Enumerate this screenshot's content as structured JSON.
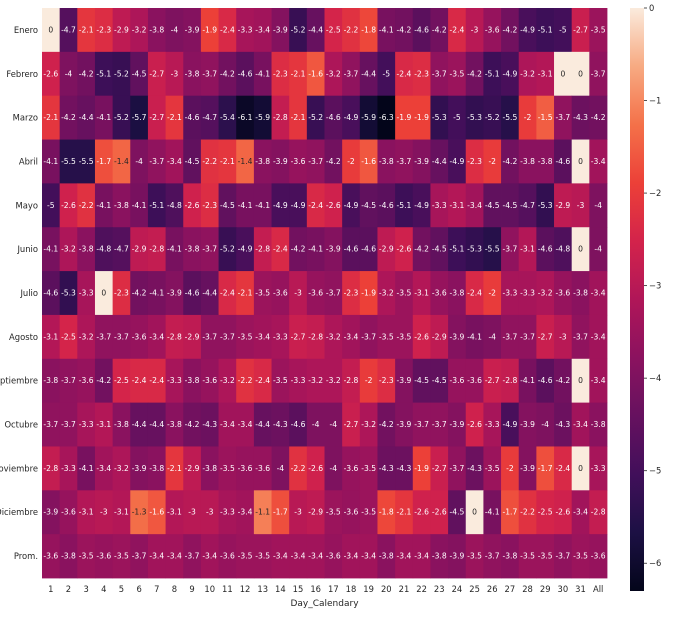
{
  "chart_data": {
    "type": "heatmap",
    "title": "",
    "xlabel": "Day_Calendary",
    "ylabel": "",
    "x_categories": [
      "1",
      "2",
      "3",
      "4",
      "5",
      "6",
      "7",
      "8",
      "9",
      "10",
      "11",
      "12",
      "13",
      "14",
      "15",
      "16",
      "17",
      "18",
      "19",
      "20",
      "21",
      "22",
      "23",
      "24",
      "25",
      "26",
      "27",
      "28",
      "29",
      "30",
      "31",
      "All"
    ],
    "y_categories": [
      "Enero",
      "Febrero",
      "Marzo",
      "Abril",
      "Mayo",
      "Junio",
      "Julio",
      "Agosto",
      "Septiembre",
      "Octubre",
      "Noviembre",
      "Diciembre",
      "Prom."
    ],
    "values": [
      [
        0,
        -4.7,
        -2.1,
        -2.3,
        -2.9,
        -3.2,
        -3.8,
        -4,
        -3.9,
        -1.9,
        -2.4,
        -3.3,
        -3.4,
        -3.9,
        -5.2,
        -4.4,
        -2.5,
        -2.2,
        -1.8,
        -4.1,
        -4.2,
        -4.6,
        -4.2,
        -2.4,
        -3,
        -3.6,
        -4.2,
        -4.9,
        -5.1,
        -5,
        -2.7,
        -3.5
      ],
      [
        -2.6,
        -4,
        -4.2,
        -5.1,
        -5.2,
        -4.5,
        -2.7,
        -3,
        -3.8,
        -3.7,
        -4.2,
        -4.6,
        -4.1,
        -2.3,
        -2.1,
        -1.6,
        -3.2,
        -3.7,
        -4.4,
        -5,
        -2.4,
        -2.3,
        -3.7,
        -3.5,
        -4.2,
        -5.1,
        -4.9,
        -3.2,
        -3.1,
        0,
        0,
        -3.7
      ],
      [
        -2.1,
        -4.2,
        -4.4,
        -4.1,
        -5.2,
        -5.7,
        -2.7,
        -2.1,
        -4.6,
        -4.7,
        -5.4,
        -6.1,
        -5.9,
        -2.8,
        -2.1,
        -5.2,
        -4.6,
        -4.9,
        -5.9,
        -6.3,
        -1.9,
        -1.9,
        -5.3,
        -5,
        -5.3,
        -5.2,
        -5.5,
        -2,
        -1.5,
        -3.7,
        -4.3,
        -4.2
      ],
      [
        -4.1,
        -5.5,
        -5.5,
        -1.7,
        -1.4,
        -4,
        -3.7,
        -3.4,
        -4.5,
        -2.2,
        -2.1,
        -1.4,
        -3.8,
        -3.9,
        -3.6,
        -3.7,
        -4.2,
        -2,
        -1.6,
        -3.8,
        -3.7,
        -3.9,
        -4.4,
        -4.9,
        -2.3,
        -2,
        -4.2,
        -3.8,
        -3.8,
        -4.6,
        0,
        -3.4
      ],
      [
        -5,
        -2.6,
        -2.2,
        -4.1,
        -3.8,
        -4.1,
        -5.1,
        -4.8,
        -2.6,
        -2.3,
        -4.5,
        -4.1,
        -4.1,
        -4.9,
        -4.9,
        -2.4,
        -2.6,
        -4.9,
        -4.5,
        -4.6,
        -5.1,
        -4.9,
        -3.3,
        -3.1,
        -3.4,
        -4.5,
        -4.5,
        -4.7,
        -5.3,
        -2.9,
        -3,
        -4
      ],
      [
        -4.1,
        -3.2,
        -3.8,
        -4.8,
        -4.7,
        -2.9,
        -2.8,
        -4.1,
        -3.8,
        -3.7,
        -5.2,
        -4.9,
        -2.8,
        -2.4,
        -4.2,
        -4.1,
        -3.9,
        -4.6,
        -4.6,
        -2.9,
        -2.6,
        -4.2,
        -4.5,
        -5.1,
        -5.3,
        -5.5,
        -3.7,
        -3.1,
        -4.6,
        -4.8,
        0,
        -4
      ],
      [
        -4.6,
        -5.3,
        -3.3,
        0,
        -2.3,
        -4.2,
        -4.1,
        -3.9,
        -4.6,
        -4.4,
        -2.4,
        -2.1,
        -3.5,
        -3.6,
        -3,
        -3.6,
        -3.7,
        -2.3,
        -1.9,
        -3.2,
        -3.5,
        -3.1,
        -3.6,
        -3.8,
        -2.4,
        -2,
        -3.3,
        -3.3,
        -3.2,
        -3.6,
        -3.8,
        -3.4
      ],
      [
        -3.1,
        -2.5,
        -3.2,
        -3.7,
        -3.7,
        -3.6,
        -3.4,
        -2.8,
        -2.9,
        -3.7,
        -3.7,
        -3.5,
        -3.4,
        -3.3,
        -2.7,
        -2.8,
        -3.2,
        -3.4,
        -3.7,
        -3.5,
        -3.5,
        -2.6,
        -2.9,
        -3.9,
        -4.1,
        -4,
        -3.7,
        -3.7,
        -2.7,
        -3,
        -3.7,
        -3.4
      ],
      [
        -3.8,
        -3.7,
        -3.6,
        -4.2,
        -2.5,
        -2.4,
        -2.4,
        -3.3,
        -3.8,
        -3.6,
        -3.2,
        -2.2,
        -2.4,
        -3.5,
        -3.3,
        -3.2,
        -3.2,
        -2.8,
        -2,
        -2.3,
        -3.9,
        -4.5,
        -4.5,
        -3.6,
        -3.6,
        -2.7,
        -2.8,
        -4.1,
        -4.6,
        -4.2,
        0,
        -3.4
      ],
      [
        -3.7,
        -3.7,
        -3.3,
        -3.1,
        -3.8,
        -4.4,
        -4.4,
        -3.8,
        -4.2,
        -4.3,
        -3.4,
        -3.4,
        -4.4,
        -4.3,
        -4.6,
        -4,
        -4,
        -2.7,
        -3.2,
        -4.2,
        -3.9,
        -3.7,
        -3.7,
        -3.9,
        -2.6,
        -3.3,
        -4.9,
        -3.9,
        -4,
        -4.3,
        -3.4,
        -3.8
      ],
      [
        -2.8,
        -3.3,
        -4.1,
        -3.4,
        -3.2,
        -3.9,
        -3.8,
        -2.1,
        -2.9,
        -3.8,
        -3.5,
        -3.6,
        -3.6,
        -4,
        -2.2,
        -2.6,
        -4,
        -3.6,
        -3.5,
        -4.3,
        -4.3,
        -1.9,
        -2.7,
        -3.7,
        -4.3,
        -3.5,
        -2,
        -3.9,
        -1.7,
        -2.4,
        0,
        -3.3
      ],
      [
        -3.9,
        -3.6,
        -3.1,
        -3,
        -3.1,
        -1.3,
        -1.6,
        -3.1,
        -3,
        -3,
        -3.3,
        -3.4,
        -1.1,
        -1.7,
        -3,
        -2.9,
        -3.5,
        -3.6,
        -3.5,
        -1.8,
        -2.1,
        -2.6,
        -2.6,
        -4.5,
        0,
        -4.1,
        -1.7,
        -2.2,
        -2.5,
        -2.6,
        -3.4,
        -2.8
      ],
      [
        -3.6,
        -3.8,
        -3.5,
        -3.6,
        -3.5,
        -3.7,
        -3.4,
        -3.4,
        -3.7,
        -3.4,
        -3.6,
        -3.5,
        -3.5,
        -3.4,
        -3.4,
        -3.4,
        -3.6,
        -3.4,
        -3.4,
        -3.8,
        -3.4,
        -3.4,
        -3.8,
        -3.9,
        -3.5,
        -3.7,
        -3.8,
        -3.5,
        -3.5,
        -3.7,
        -3.5,
        -3.6
      ]
    ],
    "color_scale": {
      "min": -6.3,
      "max": 0,
      "colormap": "rocket",
      "ticks": [
        0,
        -1,
        -2,
        -3,
        -4,
        -5,
        -6
      ]
    },
    "legend": "colorbar-right"
  }
}
